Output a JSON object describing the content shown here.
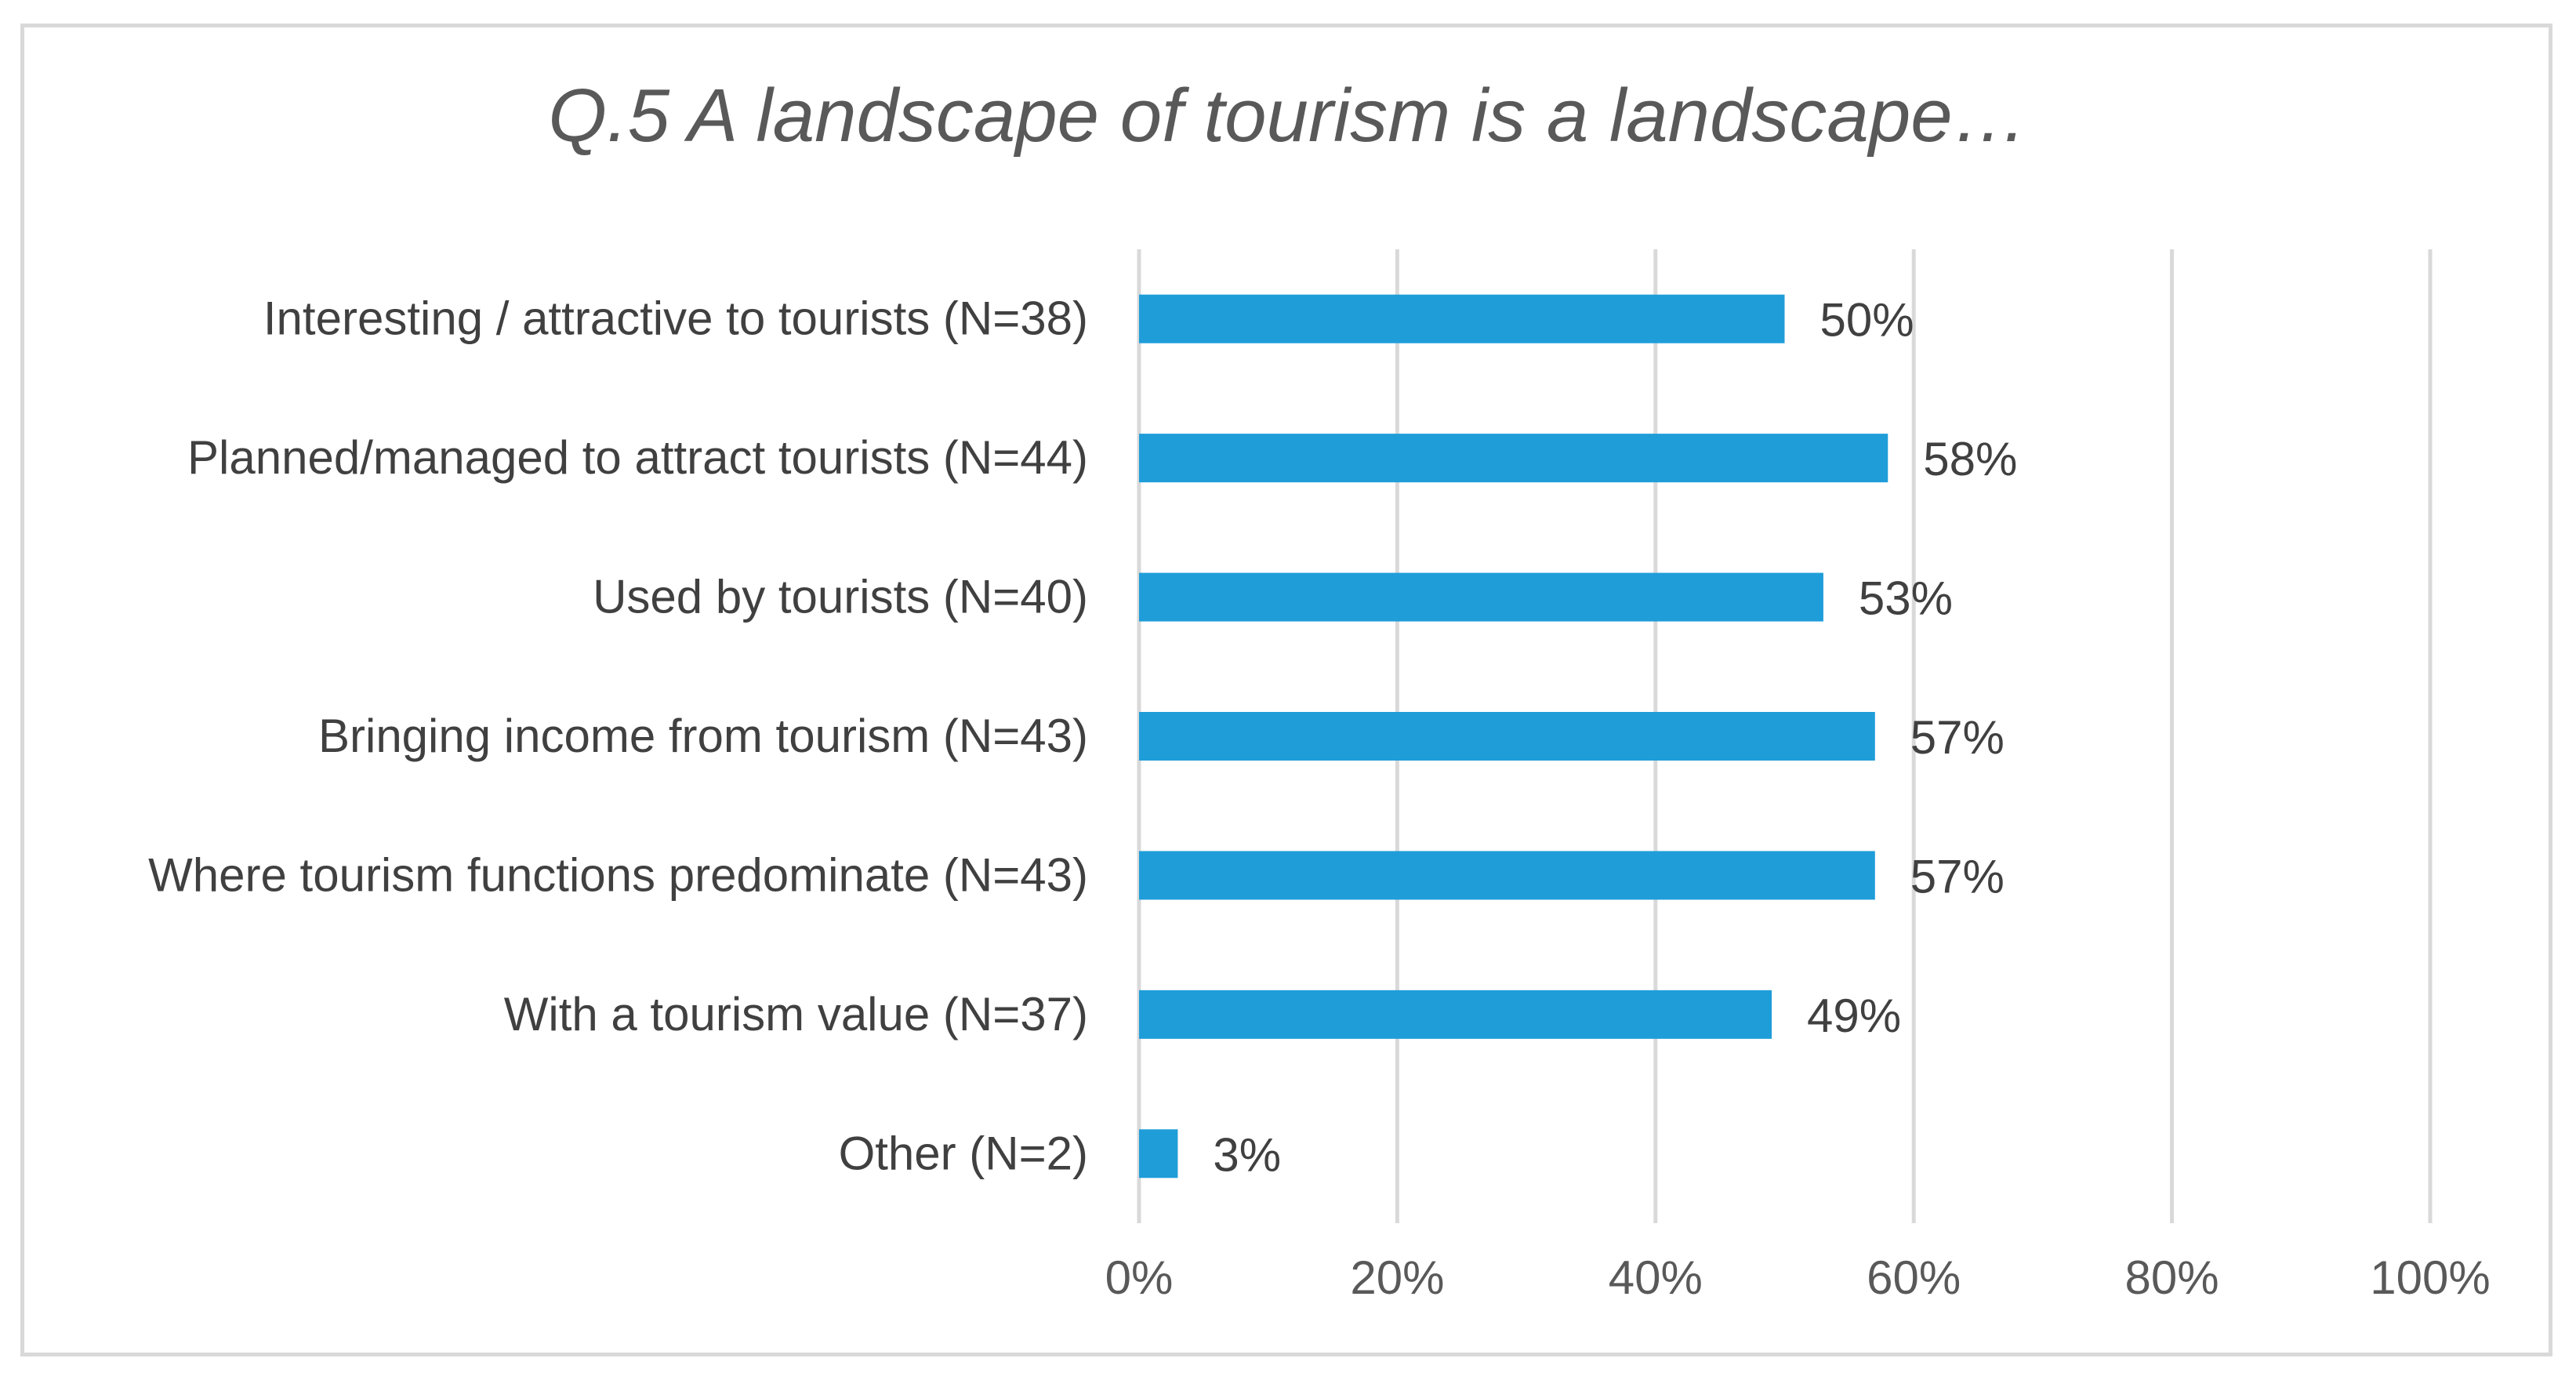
{
  "chart_data": {
    "type": "bar",
    "orientation": "horizontal",
    "title": "Q.5 A landscape of tourism is a landscape…",
    "xlabel": "",
    "ylabel": "",
    "categories": [
      "Interesting / attractive to tourists (N=38)",
      "Planned/managed to attract tourists (N=44)",
      "Used by tourists (N=40)",
      "Bringing income from tourism (N=43)",
      "Where tourism functions predominate (N=43)",
      "With a tourism value (N=37)",
      "Other (N=2)"
    ],
    "values": [
      50,
      58,
      53,
      57,
      57,
      49,
      3
    ],
    "data_labels": [
      "50%",
      "58%",
      "53%",
      "57%",
      "57%",
      "49%",
      "3%"
    ],
    "xlim": [
      0,
      100
    ],
    "x_ticks": [
      0,
      20,
      40,
      60,
      80,
      100
    ],
    "x_tick_labels": [
      "0%",
      "20%",
      "40%",
      "60%",
      "80%",
      "100%"
    ],
    "grid": "vertical",
    "legend": "none",
    "bar_color": "#1f9dd9"
  }
}
